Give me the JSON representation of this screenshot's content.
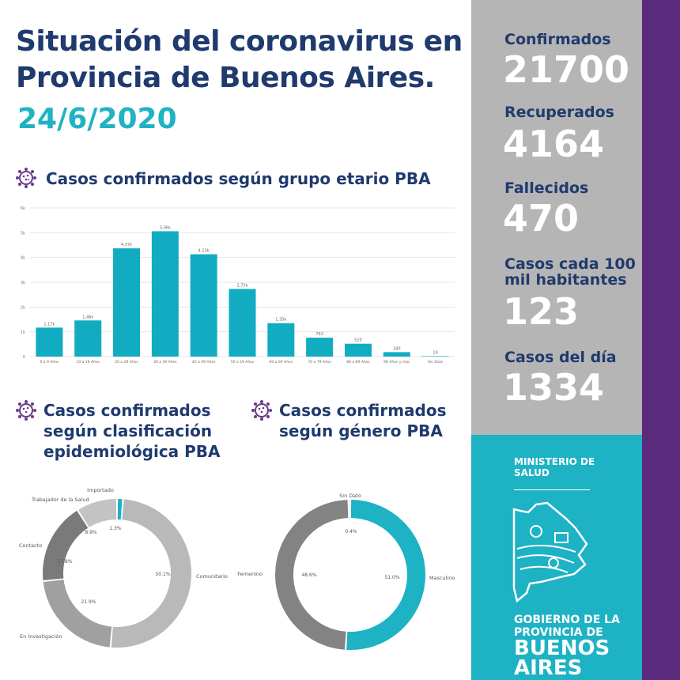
{
  "header": {
    "title_line1": "Situación del coronavirus en",
    "title_line2": "Provincia de Buenos Aires.",
    "date": "24/6/2020"
  },
  "sections": {
    "age": "Casos confirmados según grupo etario PBA",
    "epi_line1": "Casos confirmados",
    "epi_line2": "según clasificación",
    "epi_line3": "epidemiológica PBA",
    "gender_line1": "Casos confirmados",
    "gender_line2": "según género PBA"
  },
  "icons": {
    "section": "virus-icon"
  },
  "stats": [
    {
      "label": "Confirmados",
      "value": "21700"
    },
    {
      "label": "Recuperados",
      "value": "4164"
    },
    {
      "label": "Fallecidos",
      "value": "470"
    },
    {
      "label_line1": "Casos cada 100",
      "label_line2": "mil habitantes",
      "value": "123"
    },
    {
      "label": "Casos del día",
      "value": "1334"
    }
  ],
  "org": {
    "ministry_line1": "MINISTERIO DE",
    "ministry_line2": "SALUD",
    "gov_line1": "GOBIERNO DE LA",
    "gov_line2": "PROVINCIA DE",
    "gov_line3": "BUENOS",
    "gov_line4": "AIRES"
  },
  "colors": {
    "title": "#1f3a6d",
    "accent": "#1db2c4",
    "bar": "#12acc2",
    "grey_panel": "#b5b5b5",
    "purple": "#5a2a7c"
  },
  "chart_data": [
    {
      "type": "bar",
      "title": "Casos confirmados según grupo etario PBA",
      "categories": [
        "0 a 9 Años",
        "10 a 19 Años",
        "20 a 29 Años",
        "30 a 39 Años",
        "40 a 49 Años",
        "50 a 59 Años",
        "60 a 69 Años",
        "70 a 79 Años",
        "80 a 89 Años",
        "90 Años y más",
        "Sin Dato"
      ],
      "values": [
        1170,
        1460,
        4370,
        5060,
        4130,
        2730,
        1350,
        763,
        520,
        180,
        19
      ],
      "labels": [
        "1,17k",
        "1,46k",
        "4,37k",
        "5,06k",
        "4,13k",
        "2,73k",
        "1,35k",
        "763",
        "520",
        "180",
        "19"
      ],
      "yticks": [
        "0",
        "1k",
        "2k",
        "3k",
        "4k",
        "5k",
        "6k"
      ],
      "ylim": [
        0,
        6000
      ],
      "grid": true
    },
    {
      "type": "pie",
      "subtype": "donut",
      "title": "Casos confirmados según clasificación epidemiológica PBA",
      "slices": [
        {
          "name": "Importado",
          "value": 1.3,
          "label": "1.3%",
          "color": "#1db2c4"
        },
        {
          "name": "Comunitario",
          "value": 50.1,
          "label": "50.1%",
          "color": "#b9b9b9"
        },
        {
          "name": "En Investigación",
          "value": 21.9,
          "label": "21.9%",
          "color": "#a0a0a0"
        },
        {
          "name": "Contacto",
          "value": 17.8,
          "label": "17.8%",
          "color": "#7a7a7a"
        },
        {
          "name": "Trabajador de la Salud",
          "value": 8.9,
          "label": "8.9%",
          "color": "#c3c3c3"
        }
      ]
    },
    {
      "type": "pie",
      "subtype": "donut",
      "title": "Casos confirmados según género PBA",
      "slices": [
        {
          "name": "Masculino",
          "value": 51.0,
          "label": "51.0%",
          "color": "#1db2c4"
        },
        {
          "name": "Femenino",
          "value": 48.6,
          "label": "48.6%",
          "color": "#838383"
        },
        {
          "name": "Sin Dato",
          "value": 0.4,
          "label": "0.4%",
          "color": "#555555"
        }
      ]
    }
  ]
}
